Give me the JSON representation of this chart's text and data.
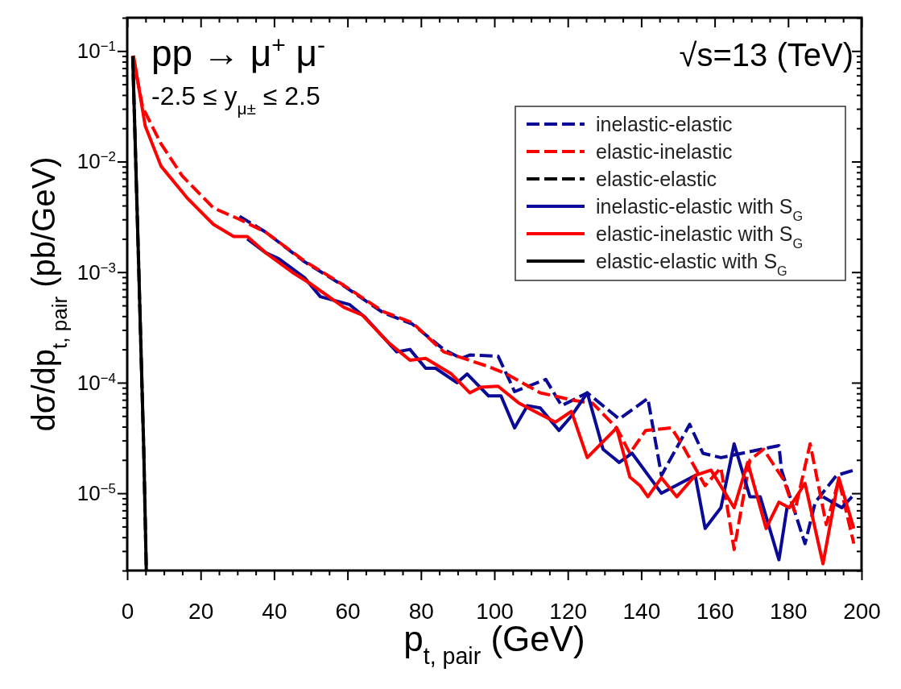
{
  "chart_data": {
    "type": "line",
    "xlabel": "p$_{t, pair}$ (GeV)",
    "ylabel": "dσ/dp$_{t, pair}$ (pb/GeV)",
    "log": "y",
    "grid": false,
    "legend": "top right",
    "xlim": [
      0,
      200
    ],
    "ylim": [
      2e-06,
      0.2
    ],
    "xticks": [
      0,
      {
        "value": 5,
        "label": null
      },
      {
        "value": 10,
        "label": null
      },
      {
        "value": 15,
        "label": null
      },
      20,
      {
        "value": 25,
        "label": null
      },
      {
        "value": 30,
        "label": null
      },
      {
        "value": 35,
        "label": null
      },
      40,
      {
        "value": 45,
        "label": null
      },
      {
        "value": 50,
        "label": null
      },
      {
        "value": 55,
        "label": null
      },
      60,
      {
        "value": 65,
        "label": null
      },
      {
        "value": 70,
        "label": null
      },
      {
        "value": 75,
        "label": null
      },
      80,
      {
        "value": 85,
        "label": null
      },
      {
        "value": 90,
        "label": null
      },
      {
        "value": 95,
        "label": null
      },
      100,
      {
        "value": 105,
        "label": null
      },
      {
        "value": 110,
        "label": null
      },
      {
        "value": 115,
        "label": null
      },
      120,
      {
        "value": 125,
        "label": null
      },
      {
        "value": 130,
        "label": null
      },
      {
        "value": 135,
        "label": null
      },
      140,
      {
        "value": 145,
        "label": null
      },
      {
        "value": 150,
        "label": null
      },
      {
        "value": 155,
        "label": null
      },
      160,
      {
        "value": 165,
        "label": null
      },
      {
        "value": 170,
        "label": null
      },
      {
        "value": 175,
        "label": null
      },
      180,
      {
        "value": 185,
        "label": null
      },
      {
        "value": 190,
        "label": null
      },
      {
        "value": 195,
        "label": null
      },
      200
    ],
    "yticks": [
      {
        "value": 2e-06,
        "label": null
      },
      {
        "value": 3e-06,
        "label": null
      },
      {
        "value": 4e-06,
        "label": null
      },
      {
        "value": 5e-06,
        "label": null
      },
      {
        "value": 6e-06,
        "label": null
      },
      {
        "value": 7e-06,
        "label": null
      },
      {
        "value": 8e-06,
        "label": null
      },
      {
        "value": 9e-06,
        "label": null
      },
      {
        "value": 1e-05,
        "label": "10$^{−5}$"
      },
      {
        "value": 2e-05,
        "label": null
      },
      {
        "value": 3e-05,
        "label": null
      },
      {
        "value": 4e-05,
        "label": null
      },
      {
        "value": 5e-05,
        "label": null
      },
      {
        "value": 6e-05,
        "label": null
      },
      {
        "value": 7e-05,
        "label": null
      },
      {
        "value": 8e-05,
        "label": null
      },
      {
        "value": 9e-05,
        "label": null
      },
      {
        "value": 0.0001,
        "label": "10$^{−4}$"
      },
      {
        "value": 0.0002,
        "label": null
      },
      {
        "value": 0.0003,
        "label": null
      },
      {
        "value": 0.0004,
        "label": null
      },
      {
        "value": 0.0005,
        "label": null
      },
      {
        "value": 0.0006,
        "label": null
      },
      {
        "value": 0.0007,
        "label": null
      },
      {
        "value": 0.0008,
        "label": null
      },
      {
        "value": 0.0009,
        "label": null
      },
      {
        "value": 0.001,
        "label": "10$^{−3}$"
      },
      {
        "value": 0.002,
        "label": null
      },
      {
        "value": 0.003,
        "label": null
      },
      {
        "value": 0.004,
        "label": null
      },
      {
        "value": 0.005,
        "label": null
      },
      {
        "value": 0.006,
        "label": null
      },
      {
        "value": 0.007,
        "label": null
      },
      {
        "value": 0.008,
        "label": null
      },
      {
        "value": 0.009,
        "label": null
      },
      {
        "value": 0.01,
        "label": "10$^{−2}$"
      },
      {
        "value": 0.02,
        "label": null
      },
      {
        "value": 0.03,
        "label": null
      },
      {
        "value": 0.04,
        "label": null
      },
      {
        "value": 0.05,
        "label": null
      },
      {
        "value": 0.06,
        "label": null
      },
      {
        "value": 0.07,
        "label": null
      },
      {
        "value": 0.08,
        "label": null
      },
      {
        "value": 0.09,
        "label": null
      },
      {
        "value": 0.1,
        "label": "10$^{−1}$"
      },
      {
        "value": 0.2,
        "label": null
      }
    ],
    "annotations": [
      "pp → μ$^{+}$ μ$^{-}$",
      "-2.5 ≤ y$_{μ±}$ ≤ 2.5",
      "√s=13 (TeV)"
    ],
    "series": [
      {
        "name": "inelastic-elastic",
        "color": "#0a0a96",
        "line_style": "dashed",
        "x": [
          30.6,
          37.7,
          48.3,
          59,
          69.7,
          77.6,
          86.2,
          91,
          93.3,
          101,
          104,
          105.5,
          114,
          118.3,
          125.3,
          134,
          141.8,
          145.5,
          153.2,
          156.8,
          161.7,
          177.5,
          178.2,
          184.6,
          187.4,
          193.2,
          197.9
        ],
        "values": [
          0.0032,
          0.0023,
          0.00124,
          0.00075,
          0.00043,
          0.00034,
          0.0002,
          0.000166,
          0.000178,
          0.000174,
          0.000107,
          8.3e-05,
          0.000107,
          6.2e-05,
          8.1e-05,
          4.7e-05,
          7.2e-05,
          1.45e-05,
          4.2e-05,
          2.3e-05,
          2.1e-05,
          2.7e-05,
          1.62e-05,
          3.5e-06,
          8.3e-06,
          1.45e-05,
          1.62e-05
        ]
      },
      {
        "name": "elastic-inelastic",
        "color": "#ff0000",
        "line_style": "dashed",
        "x": [
          1.7,
          4.2,
          9.2,
          15,
          23.5,
          30.6,
          37.7,
          48.3,
          59,
          69.7,
          77.6,
          86.2,
          98.4,
          103.3,
          112.5,
          121.9,
          126.8,
          133.3,
          136.9,
          141.2,
          148.2,
          151,
          157.4,
          161.7,
          165.3,
          169.6,
          173.3,
          178.8,
          181.8,
          186,
          190.4,
          193.8,
          197.9
        ],
        "values": [
          0.085,
          0.031,
          0.0145,
          0.0074,
          0.0038,
          0.003,
          0.0023,
          0.00126,
          0.00076,
          0.00044,
          0.00035,
          0.00019,
          0.00014,
          0.00012,
          8.1e-05,
          6.9e-05,
          6.5e-05,
          3.9e-05,
          2.3e-05,
          3.7e-05,
          3.9e-05,
          2.8e-05,
          1.17e-05,
          1.7e-05,
          3.1e-06,
          2e-05,
          2.5e-05,
          1.32e-05,
          6.8e-06,
          2.8e-05,
          5.2e-06,
          1.32e-05,
          3.5e-06
        ]
      },
      {
        "name": "elastic-elastic",
        "color": "#000000",
        "line_style": "dashed",
        "x": [
          1.5,
          3,
          4.5,
          5.2
        ],
        "values": [
          0.09,
          0.0016,
          2.5e-05,
          2e-06
        ]
      },
      {
        "name": "inelastic-elastic with S$_{G}$",
        "color": "#0a0a96",
        "line_style": "solid",
        "x": [
          32.7,
          37.7,
          41.3,
          48.3,
          52.6,
          60.5,
          64.8,
          73.4,
          77,
          81.3,
          84,
          89.8,
          92.6,
          98.4,
          101.8,
          105.5,
          109,
          112.5,
          117.6,
          121,
          125.3,
          129.6,
          134,
          137.5,
          145.5,
          154.7,
          157.4,
          161.7,
          165.3,
          169.6,
          172.4,
          177.5,
          179.7,
          182,
          186,
          189.5,
          194.6,
          197.4
        ],
        "values": [
          0.002,
          0.0015,
          0.00132,
          0.00089,
          0.0006,
          0.00051,
          0.00039,
          0.00019,
          0.0002,
          0.000135,
          0.000135,
          0.0001,
          0.00012,
          7.6e-05,
          7.6e-05,
          3.9e-05,
          6.2e-05,
          5.9e-05,
          3.7e-05,
          5e-05,
          8.1e-05,
          2.5e-05,
          1.9e-05,
          2.3e-05,
          1e-05,
          1.45e-05,
          4.8e-06,
          7.4e-06,
          2.8e-05,
          9.3e-06,
          9.3e-06,
          2.5e-06,
          7.4e-06,
          null,
          null,
          9.3e-06,
          7.4e-06,
          9.3e-06
        ]
      },
      {
        "name": "elastic-inelastic with S$_{G}$",
        "color": "#ff0000",
        "line_style": "solid",
        "x": [
          1.7,
          4.9,
          9.2,
          16.3,
          23.5,
          29,
          32.7,
          37.7,
          44.9,
          49.8,
          59,
          64,
          71.2,
          77,
          81.3,
          88.3,
          93.3,
          96.3,
          101,
          106.8,
          116.6,
          121,
          125.3,
          133.3,
          136.9,
          139.7,
          141.8,
          145.5,
          149.7,
          154.7,
          159,
          165.3,
          169,
          174,
          177.5,
          180.3,
          184.6,
          189.5,
          193.8,
          197.9
        ],
        "values": [
          0.091,
          0.021,
          0.0091,
          0.0047,
          0.0027,
          0.0021,
          0.0021,
          0.0015,
          0.001,
          0.00079,
          0.00048,
          0.00041,
          0.00023,
          0.00016,
          0.000166,
          0.00012,
          8.1e-05,
          9.1e-05,
          9.3e-05,
          6.5e-05,
          4.4e-05,
          5.5e-05,
          2.1e-05,
          3.9e-05,
          1.4e-05,
          1.17e-05,
          9.3e-06,
          1.38e-05,
          9.3e-06,
          1.45e-05,
          1.62e-05,
          7.4e-06,
          1.9e-05,
          4.8e-06,
          8.3e-06,
          7.4e-06,
          1.23e-05,
          2.3e-06,
          1.38e-05,
          4.8e-06
        ]
      },
      {
        "name": "elastic-elastic with S$_{G}$",
        "color": "#000000",
        "line_style": "solid",
        "x": [
          1.5,
          3,
          4.5,
          5.2
        ],
        "values": [
          0.09,
          0.0016,
          2.5e-05,
          2e-06
        ]
      }
    ]
  }
}
